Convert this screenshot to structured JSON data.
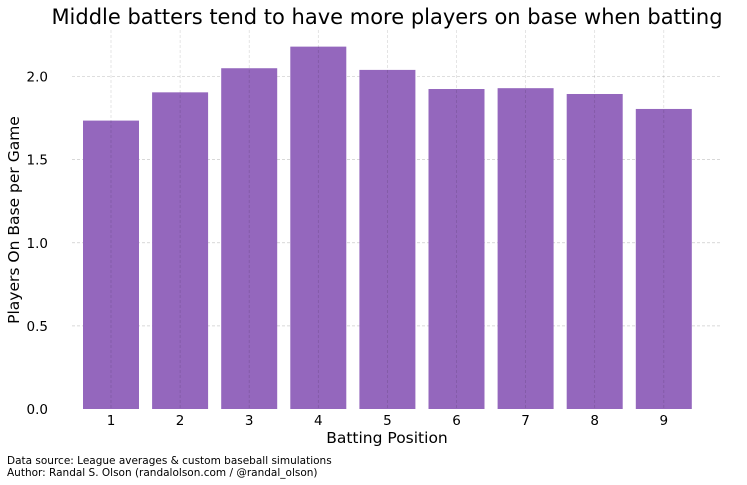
{
  "chart_data": {
    "type": "bar",
    "title": "Middle batters tend to have more players on base when batting",
    "xlabel": "Batting Position",
    "ylabel": "Players On Base per Game",
    "categories": [
      "1",
      "2",
      "3",
      "4",
      "5",
      "6",
      "7",
      "8",
      "9"
    ],
    "values": [
      1.735,
      1.905,
      2.05,
      2.18,
      2.04,
      1.925,
      1.93,
      1.895,
      1.805
    ],
    "ylim": [
      0,
      2.28
    ],
    "yticks": [
      "0.0",
      "0.5",
      "1.0",
      "1.5",
      "2.0"
    ],
    "grid": true,
    "bar_color": "#9467bd"
  },
  "footer": {
    "source": "Data source: League averages & custom baseball simulations",
    "author": "Author: Randal S. Olson (randalolson.com / @randal_olson)"
  }
}
